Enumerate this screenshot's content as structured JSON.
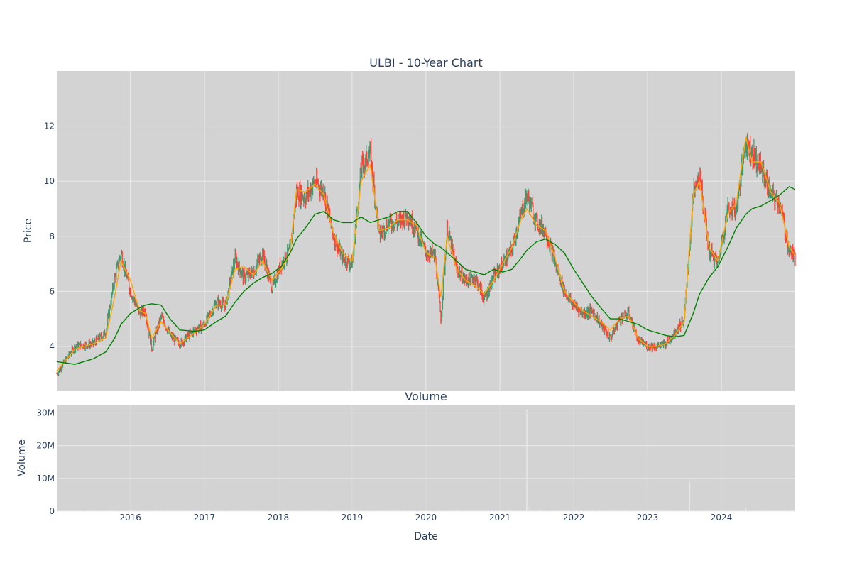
{
  "chart_data": [
    {
      "type": "candlestick",
      "title": "ULBI - 10-Year Chart",
      "ylabel": "Price",
      "x_range": [
        "2015-01-02",
        "2024-12-31"
      ],
      "ylim": [
        2.4,
        14
      ],
      "y_ticks": [
        4,
        6,
        8,
        10,
        12
      ],
      "grid": true,
      "colors": {
        "up": "#3d9970",
        "down": "#ff4136",
        "ma_short": "#ffa500",
        "ma_long": "#008000",
        "plot_bg": "#d3d3d3",
        "grid": "#ececec"
      },
      "series": [
        {
          "name": "ULBI",
          "kind": "price",
          "x": [
            "2015-01-01",
            "2015-04-01",
            "2015-07-01",
            "2015-09-01",
            "2015-10-15",
            "2015-11-15",
            "2016-01-01",
            "2016-02-15",
            "2016-03-15",
            "2016-04-15",
            "2016-06-01",
            "2016-07-15",
            "2016-09-01",
            "2016-11-15",
            "2017-01-01",
            "2017-03-01",
            "2017-04-15",
            "2017-06-01",
            "2017-07-15",
            "2017-09-01",
            "2017-10-15",
            "2017-12-01",
            "2018-01-15",
            "2018-03-01",
            "2018-04-01",
            "2018-05-15",
            "2018-07-01",
            "2018-08-15",
            "2018-10-01",
            "2018-11-15",
            "2019-01-01",
            "2019-02-15",
            "2019-04-01",
            "2019-05-15",
            "2019-07-01",
            "2019-08-15",
            "2019-10-01",
            "2019-11-15",
            "2020-01-01",
            "2020-02-15",
            "2020-03-15",
            "2020-04-15",
            "2020-06-01",
            "2020-07-15",
            "2020-09-01",
            "2020-10-15",
            "2020-12-01",
            "2021-01-15",
            "2021-03-01",
            "2021-04-15",
            "2021-05-15",
            "2021-07-01",
            "2021-08-15",
            "2021-10-01",
            "2021-11-15",
            "2022-01-01",
            "2022-02-15",
            "2022-04-01",
            "2022-05-15",
            "2022-07-01",
            "2022-08-15",
            "2022-10-01",
            "2022-11-15",
            "2023-01-01",
            "2023-02-15",
            "2023-04-01",
            "2023-05-15",
            "2023-07-01",
            "2023-08-15",
            "2023-09-15",
            "2023-11-01",
            "2023-12-15",
            "2024-02-01",
            "2024-03-15",
            "2024-05-01",
            "2024-06-01",
            "2024-07-15",
            "2024-09-01",
            "2024-10-15",
            "2024-12-01",
            "2024-12-31"
          ],
          "close": [
            3.0,
            4.0,
            4.1,
            4.5,
            6.5,
            7.4,
            6.0,
            5.2,
            5.3,
            3.9,
            5.1,
            4.4,
            4.1,
            4.6,
            4.8,
            5.6,
            5.5,
            7.2,
            6.5,
            6.7,
            7.4,
            6.1,
            7.0,
            7.5,
            9.6,
            9.4,
            10.0,
            9.6,
            8.0,
            7.2,
            7.0,
            10.5,
            11.0,
            8.0,
            8.5,
            8.5,
            8.8,
            8.2,
            7.4,
            7.3,
            5.0,
            8.3,
            6.8,
            6.4,
            6.5,
            5.7,
            6.5,
            7.0,
            7.5,
            8.8,
            9.5,
            8.5,
            8.2,
            7.0,
            6.0,
            5.5,
            5.2,
            5.3,
            4.8,
            4.3,
            5.0,
            5.2,
            4.2,
            4.0,
            4.0,
            4.1,
            4.5,
            5.0,
            9.5,
            10.2,
            7.5,
            7.0,
            9.0,
            9.0,
            11.5,
            11.0,
            10.5,
            9.5,
            9.2,
            7.5,
            7.2
          ],
          "ma_short": [
            3.1,
            3.9,
            4.1,
            4.3,
            5.8,
            7.1,
            6.4,
            5.3,
            5.2,
            4.3,
            4.9,
            4.5,
            4.1,
            4.5,
            4.8,
            5.5,
            5.5,
            6.8,
            6.9,
            6.6,
            7.1,
            6.4,
            6.8,
            7.4,
            9.7,
            9.6,
            9.9,
            9.5,
            8.1,
            7.4,
            7.1,
            10.0,
            10.6,
            8.2,
            8.3,
            8.6,
            8.6,
            8.4,
            7.4,
            7.2,
            5.8,
            8.0,
            6.8,
            6.4,
            6.2,
            5.9,
            6.4,
            7.0,
            7.6,
            8.6,
            9.0,
            8.4,
            8.2,
            7.2,
            6.0,
            5.6,
            5.3,
            5.1,
            4.9,
            4.6,
            5.0,
            5.1,
            4.3,
            4.0,
            4.0,
            4.1,
            4.4,
            4.9,
            9.5,
            10.0,
            7.6,
            7.1,
            8.8,
            9.2,
            11.6,
            10.7,
            10.7,
            9.6,
            9.2,
            7.6,
            7.3
          ],
          "ma_long": [
            3.45,
            3.35,
            3.55,
            3.8,
            4.3,
            4.8,
            5.2,
            5.4,
            5.5,
            5.55,
            5.5,
            5.0,
            4.6,
            4.55,
            4.6,
            4.9,
            5.1,
            5.6,
            6.0,
            6.3,
            6.5,
            6.65,
            6.9,
            7.4,
            7.9,
            8.3,
            8.8,
            8.9,
            8.6,
            8.5,
            8.5,
            8.7,
            8.5,
            8.6,
            8.7,
            8.9,
            8.9,
            8.5,
            8.0,
            7.7,
            7.6,
            7.4,
            7.1,
            6.8,
            6.7,
            6.6,
            6.8,
            6.7,
            6.8,
            7.2,
            7.5,
            7.8,
            7.9,
            7.7,
            7.4,
            6.8,
            6.3,
            5.8,
            5.4,
            5.0,
            5.0,
            4.9,
            4.8,
            4.6,
            4.5,
            4.4,
            4.35,
            4.4,
            5.2,
            5.9,
            6.5,
            6.9,
            7.6,
            8.3,
            8.8,
            9.0,
            9.1,
            9.3,
            9.5,
            9.8,
            9.7
          ]
        }
      ]
    },
    {
      "type": "bar",
      "title": "Volume",
      "xlabel": "Date",
      "ylabel": "Volume",
      "x_ticks": [
        "2016",
        "2017",
        "2018",
        "2019",
        "2020",
        "2021",
        "2022",
        "2023",
        "2024"
      ],
      "y_ticks": [
        0,
        10000000,
        20000000,
        30000000
      ],
      "y_tick_labels": [
        "0",
        "10M",
        "20M",
        "30M"
      ],
      "ylim": [
        0,
        32500000
      ],
      "color": "#cfcfcf",
      "series": [
        {
          "name": "Volume",
          "x": [
            "2015-06-01",
            "2016-06-01",
            "2017-06-01",
            "2018-06-01",
            "2019-03-01",
            "2020-06-01",
            "2021-05-14",
            "2021-05-20",
            "2022-06-01",
            "2023-07-28",
            "2024-05-01"
          ],
          "values": [
            300000,
            300000,
            300000,
            300000,
            400000,
            300000,
            31000000,
            1500000,
            300000,
            9000000,
            1000000
          ]
        }
      ]
    }
  ]
}
